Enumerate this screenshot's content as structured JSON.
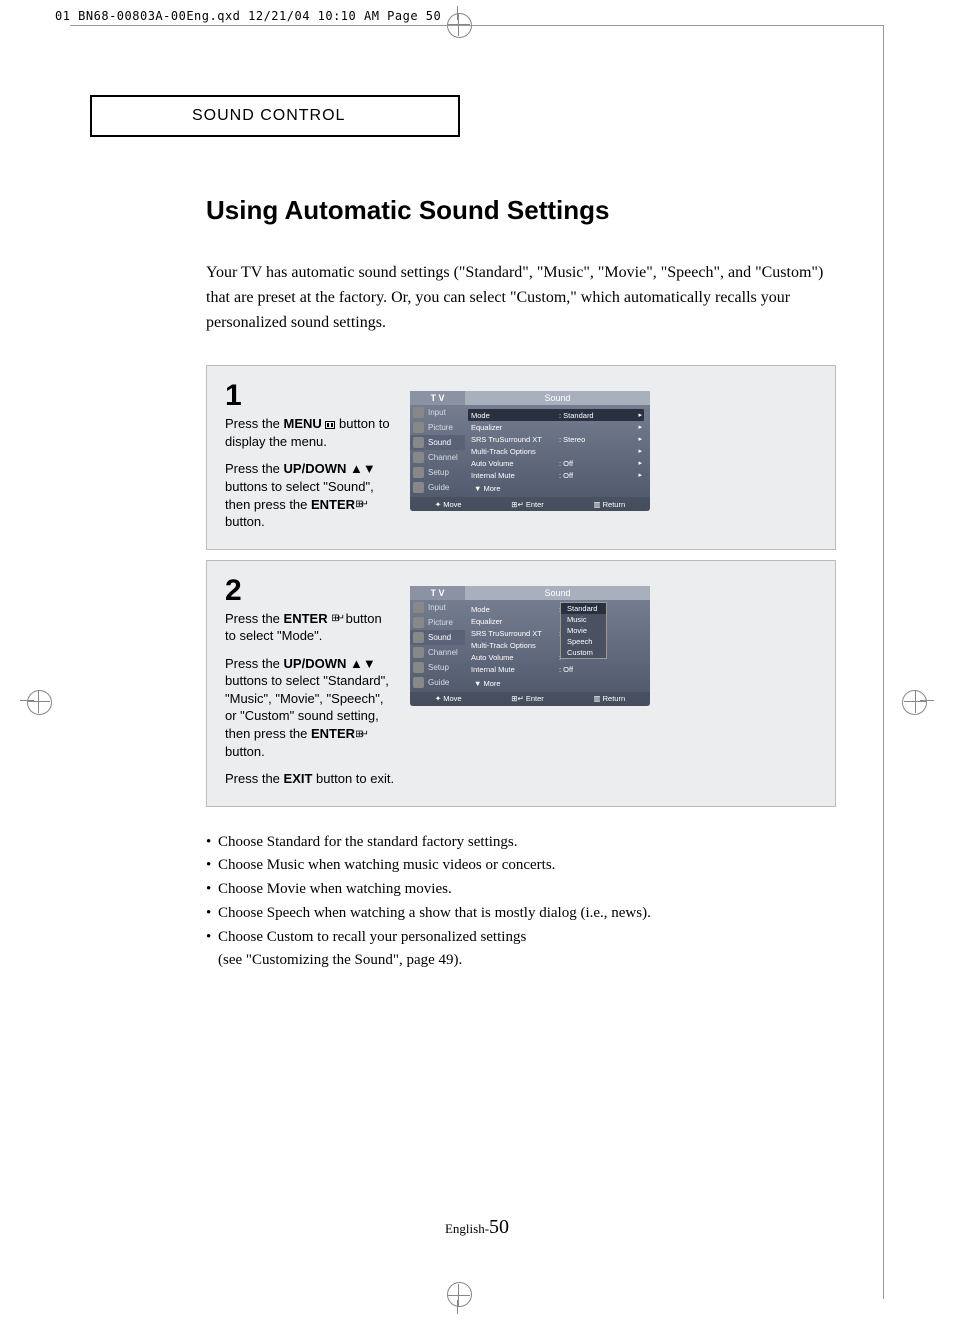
{
  "header_line": "01 BN68-00803A-00Eng.qxd  12/21/04 10:10 AM  Page 50",
  "section_tab": "SOUND CONTROL",
  "title": "Using Automatic Sound Settings",
  "intro": "Your TV has automatic sound settings (\"Standard\", \"Music\", \"Movie\", \"Speech\", and \"Custom\") that are preset at the factory. Or, you can select \"Custom,\" which automatically recalls your personalized sound settings.",
  "steps": [
    {
      "num": "1",
      "paras": [
        {
          "pre": "Press the ",
          "bold": "MENU",
          "icon": "menu",
          "post": " button to display the menu."
        },
        {
          "pre": "Press the ",
          "bold": "UP/DOWN",
          "sym": " ▲▼",
          "post": " buttons to select \"Sound\", then press the ",
          "bold2": "ENTER",
          "icon2": "enter",
          "post2": " button."
        }
      ],
      "osd": {
        "tv": "T V",
        "title": "Sound",
        "side": [
          "Input",
          "Picture",
          "Sound",
          "Channel",
          "Setup",
          "Guide"
        ],
        "side_sel": 2,
        "rows": [
          {
            "l": "Mode",
            "v": ": Standard",
            "sel": true,
            "arr": true
          },
          {
            "l": "Equalizer",
            "v": "",
            "arr": true
          },
          {
            "l": "SRS TruSurround XT",
            "v": ": Stereo",
            "arr": true
          },
          {
            "l": "Multi-Track Options",
            "v": "",
            "arr": true
          },
          {
            "l": "Auto Volume",
            "v": ": Off",
            "arr": true
          },
          {
            "l": "Internal Mute",
            "v": ": Off",
            "arr": true
          }
        ],
        "more": "▼ More",
        "footer": [
          "✦ Move",
          "⊞↵ Enter",
          "▥ Return"
        ]
      }
    },
    {
      "num": "2",
      "paras": [
        {
          "pre": "Press the ",
          "bold": "ENTER",
          "icon": "enter",
          "post": "  button to select \"Mode\"."
        },
        {
          "pre": "Press the ",
          "bold": "UP/DOWN",
          "sym": " ▲▼",
          "post": " buttons to select \"Standard\", \"Music\", \"Movie\", \"Speech\", or \"Custom\" sound setting, then press the ",
          "bold2": "ENTER",
          "icon2": "enter",
          "post2": "  button."
        },
        {
          "pre": "Press the ",
          "bold": "EXIT",
          "post": " button to exit."
        }
      ],
      "osd": {
        "tv": "T V",
        "title": "Sound",
        "side": [
          "Input",
          "Picture",
          "Sound",
          "Channel",
          "Setup",
          "Guide"
        ],
        "side_sel": 2,
        "rows": [
          {
            "l": "Mode",
            "v": ":"
          },
          {
            "l": "Equalizer",
            "v": ""
          },
          {
            "l": "SRS TruSurround XT",
            "v": ":"
          },
          {
            "l": "Multi-Track Options",
            "v": ""
          },
          {
            "l": "Auto Volume",
            "v": ":"
          },
          {
            "l": "Internal Mute",
            "v": ": Off"
          }
        ],
        "more": "▼ More",
        "footer": [
          "✦ Move",
          "⊞↵ Enter",
          "▥ Return"
        ],
        "popup": {
          "items": [
            "Standard",
            "Music",
            "Movie",
            "Speech",
            "Custom"
          ],
          "sel": 0
        }
      }
    }
  ],
  "bullets": [
    "Choose Standard for the standard factory settings.",
    "Choose Music when watching music videos or concerts.",
    "Choose Movie when watching movies.",
    "Choose Speech when watching a show that is mostly dialog (i.e., news).",
    "Choose Custom to recall your personalized settings",
    "(see \"Customizing the Sound\", page 49)."
  ],
  "footer_prefix": "English-",
  "footer_page": "50"
}
